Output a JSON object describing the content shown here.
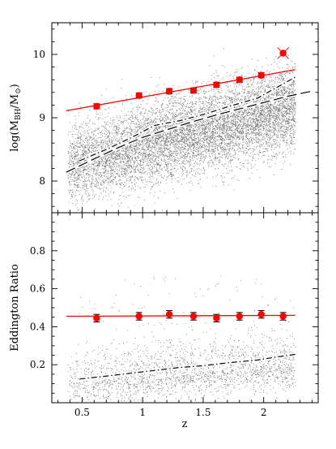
{
  "chart_data": [
    {
      "type": "scatter",
      "ylabel": "log(M_BH/M_⊙)",
      "ylabel_main": "log(M",
      "ylabel_sub": "BH",
      "ylabel_mid": "/M",
      "ylabel_sym": "⊙",
      "ylabel_close": ")",
      "xlim": [
        0.25,
        2.45
      ],
      "ylim": [
        7.5,
        10.5
      ],
      "yticks": [
        8,
        9,
        10
      ],
      "ytick_labels": [
        "8",
        "9",
        "10"
      ],
      "colors": {
        "points": "#000000",
        "binned": "#ff0000",
        "fit": "#ff0000"
      },
      "binned_points": {
        "x": [
          0.62,
          0.97,
          1.22,
          1.42,
          1.61,
          1.8,
          1.98
        ],
        "y": [
          9.18,
          9.35,
          9.42,
          9.43,
          9.52,
          9.6,
          9.67
        ],
        "yerr": [
          0.04,
          0.04,
          0.04,
          0.04,
          0.04,
          0.04,
          0.04
        ]
      },
      "outlier_point": {
        "x": 2.16,
        "y": 10.02
      },
      "fit_line": {
        "x": [
          0.37,
          2.26
        ],
        "y": [
          9.11,
          9.76
        ]
      },
      "median_dashdot": {
        "x": [
          0.48,
          0.7,
          0.9,
          1.1,
          1.3,
          1.5,
          1.7,
          1.95,
          2.1,
          2.27
        ],
        "y": [
          8.32,
          8.5,
          8.68,
          8.88,
          8.95,
          9.05,
          9.17,
          9.31,
          9.47,
          9.65
        ]
      },
      "median_longdash": {
        "x": [
          0.37,
          0.6,
          0.8,
          1.0,
          1.2,
          1.4,
          1.6,
          1.8,
          2.0,
          2.2,
          2.4
        ],
        "y": [
          8.14,
          8.35,
          8.53,
          8.69,
          8.81,
          8.93,
          9.04,
          9.14,
          9.24,
          9.34,
          9.42
        ]
      }
    },
    {
      "type": "scatter",
      "xlabel": "z",
      "ylabel": "Eddington Ratio",
      "xlim": [
        0.25,
        2.45
      ],
      "ylim": [
        0,
        1.0
      ],
      "xticks": [
        0.5,
        1,
        1.5,
        2
      ],
      "xtick_labels": [
        "0.5",
        "1",
        "1.5",
        "2"
      ],
      "yticks": [
        0.2,
        0.4,
        0.6,
        0.8
      ],
      "ytick_labels": [
        "0.2",
        "0.4",
        "0.6",
        "0.8"
      ],
      "colors": {
        "points": "#000000",
        "binned": "#ff0000",
        "fit": "#ff0000"
      },
      "binned_points": {
        "x": [
          0.62,
          0.97,
          1.22,
          1.42,
          1.61,
          1.8,
          1.98,
          2.16
        ],
        "y": [
          0.445,
          0.455,
          0.465,
          0.455,
          0.445,
          0.455,
          0.465,
          0.455
        ],
        "yerr": [
          0.02,
          0.02,
          0.02,
          0.02,
          0.02,
          0.02,
          0.02,
          0.02
        ]
      },
      "fit_line": {
        "x": [
          0.37,
          2.26
        ],
        "y": [
          0.455,
          0.46
        ]
      },
      "median_dashdot": {
        "x": [
          0.48,
          0.7,
          0.9,
          1.1,
          1.3,
          1.5,
          1.7,
          1.95,
          2.1,
          2.27
        ],
        "y": [
          0.125,
          0.14,
          0.155,
          0.17,
          0.185,
          0.195,
          0.21,
          0.225,
          0.24,
          0.255
        ]
      }
    }
  ]
}
